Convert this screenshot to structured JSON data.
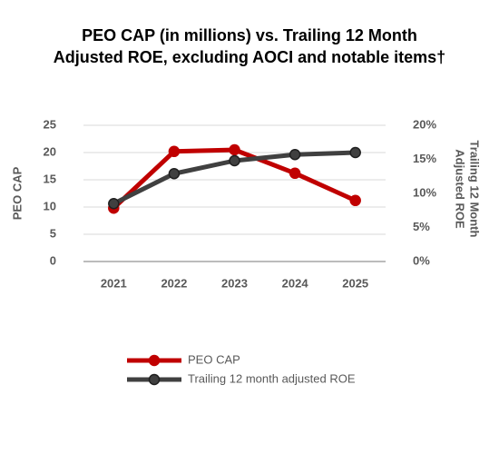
{
  "chart_data": {
    "type": "line",
    "title": [
      "PEO CAP (in millions) vs. Trailing 12 Month",
      "Adjusted ROE, excluding AOCI and notable items†"
    ],
    "ylabel": "PEO CAP",
    "y2label": [
      "Trailing 12 Month",
      "Adjusted ROE"
    ],
    "categories": [
      "2021",
      "2022",
      "2023",
      "2024",
      "2025"
    ],
    "series": [
      {
        "name": "PEO CAP",
        "color": "#c00000",
        "values": [
          9.8,
          20.2,
          20.5,
          16.2,
          11.2
        ]
      },
      {
        "name": "Trailing 12 month adjusted ROE",
        "color": "#404040",
        "axis": "y2",
        "values": [
          8.5,
          12.9,
          14.8,
          15.7,
          16.0
        ]
      }
    ],
    "ylim": [
      0,
      25
    ],
    "yticks": [
      0,
      5,
      10,
      15,
      20,
      25
    ],
    "y2lim": [
      0,
      20
    ],
    "y2ticks": [
      {
        "value": 0,
        "label": "0%"
      },
      {
        "value": 5,
        "label": "5%"
      },
      {
        "value": 10,
        "label": "10%"
      },
      {
        "value": 15,
        "label": "15%"
      },
      {
        "value": 20,
        "label": "20%"
      }
    ],
    "grid": true
  }
}
